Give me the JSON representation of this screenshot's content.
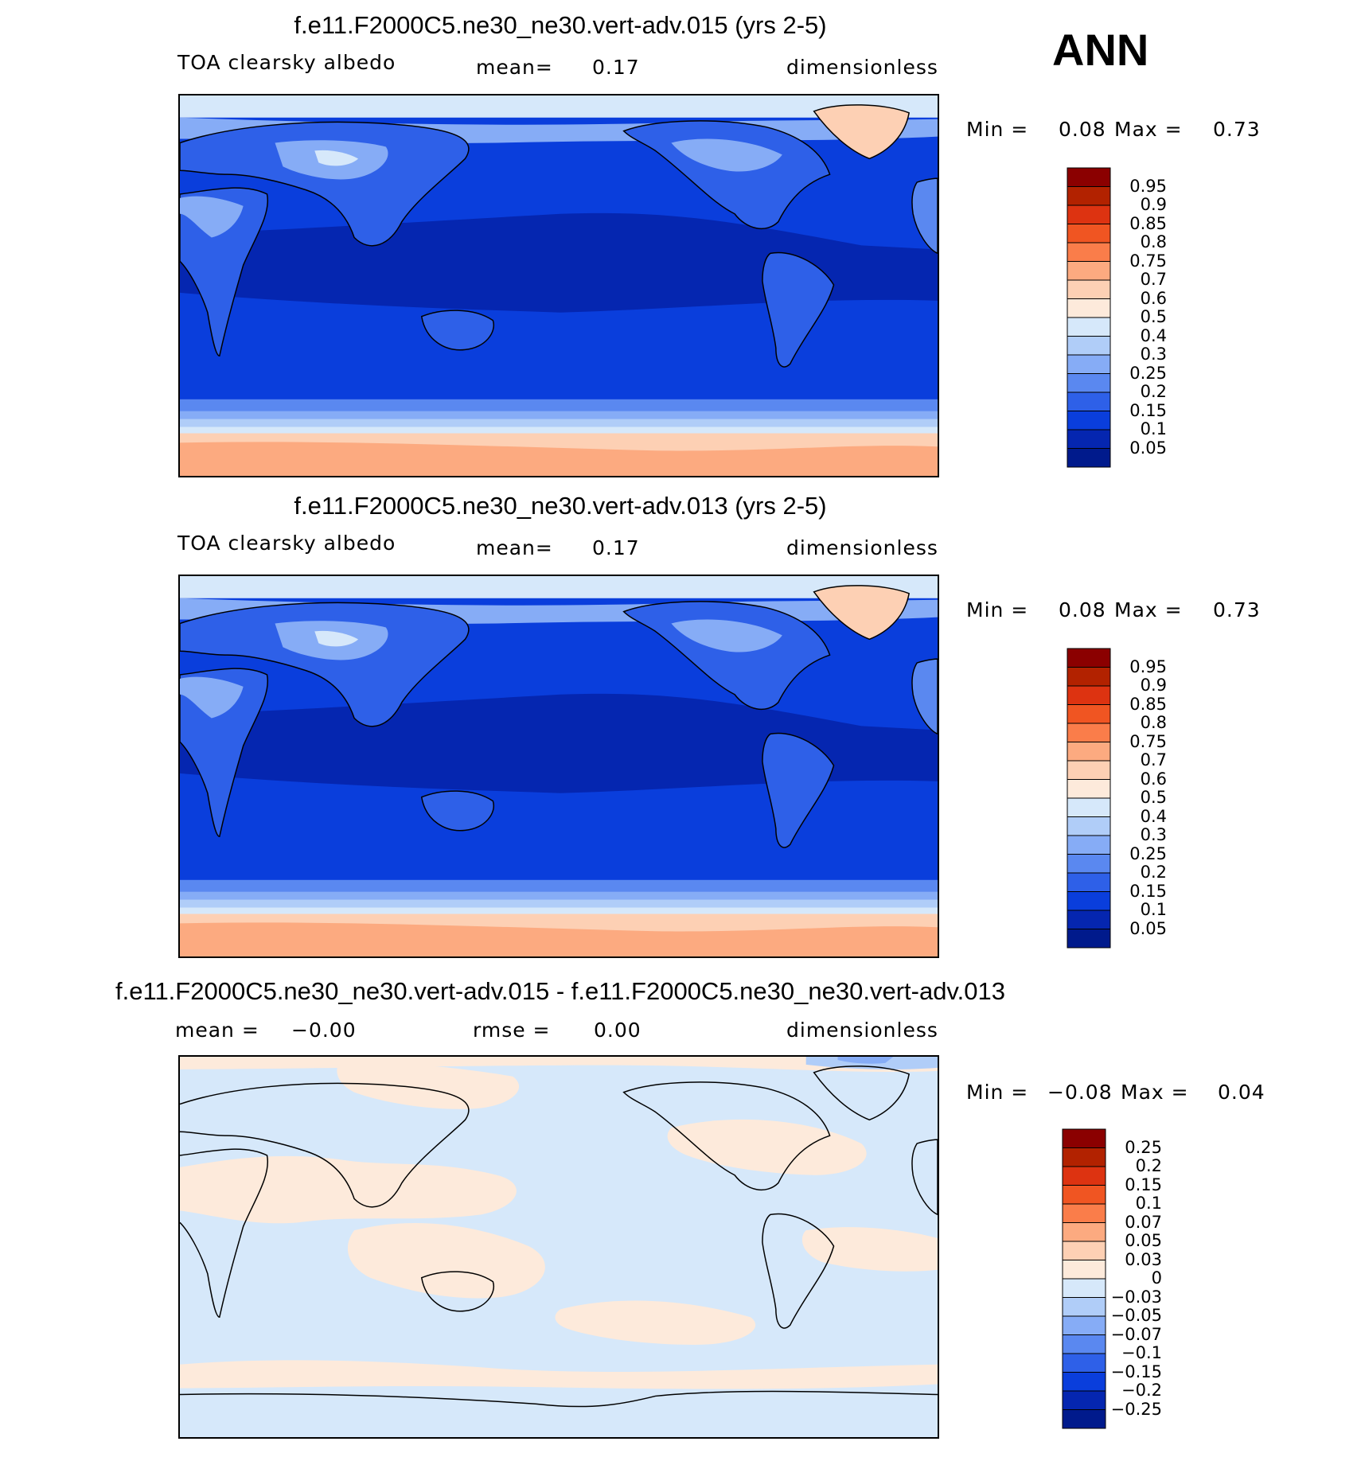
{
  "season": "ANN",
  "panels": [
    {
      "title": "f.e11.F2000C5.ne30_ne30.vert-adv.015 (yrs 2-5)",
      "variable": "TOA clearsky albedo",
      "mean_label": "mean=",
      "mean_value": "0.17",
      "units": "dimensionless",
      "min_label": "Min =",
      "min_value": "0.08",
      "max_label": "Max =",
      "max_value": "0.73"
    },
    {
      "title": "f.e11.F2000C5.ne30_ne30.vert-adv.013 (yrs 2-5)",
      "variable": "TOA clearsky albedo",
      "mean_label": "mean=",
      "mean_value": "0.17",
      "units": "dimensionless",
      "min_label": "Min =",
      "min_value": "0.08",
      "max_label": "Max =",
      "max_value": "0.73"
    },
    {
      "title": "f.e11.F2000C5.ne30_ne30.vert-adv.015 - f.e11.F2000C5.ne30_ne30.vert-adv.013",
      "mean_label": "mean =",
      "mean_value": "−0.00",
      "rmse_label": "rmse =",
      "rmse_value": "0.00",
      "units": "dimensionless",
      "min_label": "Min =",
      "min_value": "−0.08",
      "max_label": "Max =",
      "max_value": "0.04"
    }
  ],
  "chart_data": [
    {
      "type": "heatmap",
      "title": "f.e11.F2000C5.ne30_ne30.vert-adv.015 (yrs 2-5)",
      "field": "TOA clearsky albedo",
      "units": "dimensionless",
      "mean": 0.17,
      "min": 0.08,
      "max": 0.73,
      "x_range": [
        0,
        360
      ],
      "y_range": [
        -90,
        90
      ],
      "colorbar_levels": [
        "0.95",
        "0.9",
        "0.85",
        "0.8",
        "0.75",
        "0.7",
        "0.6",
        "0.5",
        "0.4",
        "0.3",
        "0.25",
        "0.2",
        "0.15",
        "0.1",
        "0.05"
      ],
      "colorbar_colors": [
        "#8b0000",
        "#b22200",
        "#dd3311",
        "#f05522",
        "#fa7d4a",
        "#fcaa80",
        "#fdd0b4",
        "#fdeadb",
        "#d6e8fa",
        "#b0cdf8",
        "#86acf6",
        "#5a88f0",
        "#2e60e8",
        "#0a3edc",
        "#0526b0",
        "#001a8c"
      ]
    },
    {
      "type": "heatmap",
      "title": "f.e11.F2000C5.ne30_ne30.vert-adv.013 (yrs 2-5)",
      "field": "TOA clearsky albedo",
      "units": "dimensionless",
      "mean": 0.17,
      "min": 0.08,
      "max": 0.73,
      "x_range": [
        0,
        360
      ],
      "y_range": [
        -90,
        90
      ],
      "colorbar_levels": [
        "0.95",
        "0.9",
        "0.85",
        "0.8",
        "0.75",
        "0.7",
        "0.6",
        "0.5",
        "0.4",
        "0.3",
        "0.25",
        "0.2",
        "0.15",
        "0.1",
        "0.05"
      ],
      "colorbar_colors": [
        "#8b0000",
        "#b22200",
        "#dd3311",
        "#f05522",
        "#fa7d4a",
        "#fcaa80",
        "#fdd0b4",
        "#fdeadb",
        "#d6e8fa",
        "#b0cdf8",
        "#86acf6",
        "#5a88f0",
        "#2e60e8",
        "#0a3edc",
        "#0526b0",
        "#001a8c"
      ]
    },
    {
      "type": "heatmap",
      "title": "f.e11.F2000C5.ne30_ne30.vert-adv.015 - f.e11.F2000C5.ne30_ne30.vert-adv.013",
      "units": "dimensionless",
      "mean": -0.0,
      "rmse": 0.0,
      "min": -0.08,
      "max": 0.04,
      "x_range": [
        0,
        360
      ],
      "y_range": [
        -90,
        90
      ],
      "colorbar_levels": [
        "0.25",
        "0.2",
        "0.15",
        "0.1",
        "0.07",
        "0.05",
        "0.03",
        "0",
        "−0.03",
        "−0.05",
        "−0.07",
        "−0.1",
        "−0.15",
        "−0.2",
        "−0.25"
      ],
      "colorbar_colors": [
        "#8b0000",
        "#b22200",
        "#dd3311",
        "#f05522",
        "#fa7d4a",
        "#fcaa80",
        "#fdd0b4",
        "#fdeadb",
        "#d6e8fa",
        "#b0cdf8",
        "#86acf6",
        "#5a88f0",
        "#2e60e8",
        "#0a3edc",
        "#0526b0",
        "#001a8c"
      ]
    }
  ]
}
